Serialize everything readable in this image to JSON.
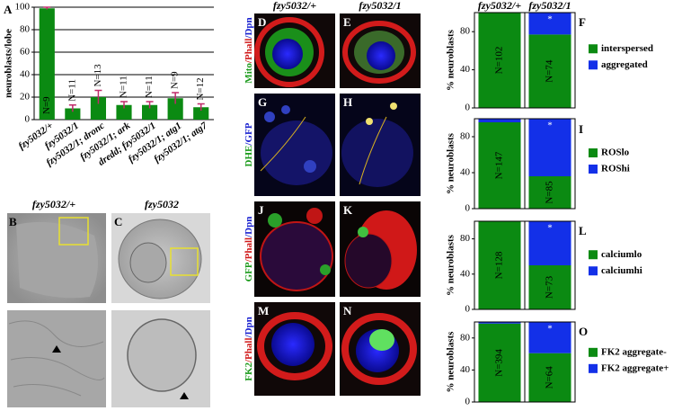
{
  "chart_data": [
    {
      "type": "bar",
      "ylabel": "neuroblasts/lobe",
      "categories": [
        "fzy5032/+",
        "fzy5032/1",
        "fzy5032/1; dronc",
        "fzy5032/1; ark",
        "dredd; fzy5032/1",
        "fzy5032/1; atg1",
        "fzy5032/1; atg7"
      ],
      "values": [
        99,
        10,
        20,
        13,
        13,
        19,
        11
      ],
      "errors": [
        1,
        3,
        6,
        3,
        3,
        5,
        3
      ],
      "n_labels": [
        "N=9",
        "N=11",
        "N=13",
        "N=11",
        "N=11",
        "N=9",
        "N=12"
      ],
      "color": "#0b8a12",
      "error_color": "#c02a6a",
      "ylim": [
        0,
        100
      ],
      "yticks": [
        0,
        20,
        40,
        60,
        80,
        100
      ],
      "grid": true
    },
    {
      "type": "stacked_bar",
      "ylabel": "% neuroblasts",
      "categories": [
        "fzy5032/+",
        "fzy5032/1"
      ],
      "series": [
        {
          "name": "interspersed",
          "color": "#0b8a12",
          "values": [
            100,
            77
          ]
        },
        {
          "name": "aggregated",
          "color": "#1330e8",
          "values": [
            0,
            23
          ]
        }
      ],
      "n_labels": [
        "N=102",
        "N=74"
      ],
      "significance_label": "*",
      "ylim": [
        0,
        100
      ],
      "yticks": [
        0,
        40,
        80
      ]
    },
    {
      "type": "stacked_bar",
      "ylabel": "% neuroblasts",
      "series": [
        {
          "name": "ROSlo",
          "color": "#0b8a12",
          "values": [
            96,
            36
          ]
        },
        {
          "name": "ROShi",
          "color": "#1330e8",
          "values": [
            4,
            64
          ]
        }
      ],
      "n_labels": [
        "N=147",
        "N=85"
      ],
      "significance_label": "*",
      "ylim": [
        0,
        100
      ],
      "yticks": [
        0,
        40,
        80
      ]
    },
    {
      "type": "stacked_bar",
      "ylabel": "% neuroblasts",
      "series": [
        {
          "name": "calciumlo",
          "color": "#0b8a12",
          "values": [
            100,
            50
          ]
        },
        {
          "name": "calciumhi",
          "color": "#1330e8",
          "values": [
            0,
            50
          ]
        }
      ],
      "n_labels": [
        "N=128",
        "N=73"
      ],
      "significance_label": "*",
      "ylim": [
        0,
        100
      ],
      "yticks": [
        0,
        40,
        80
      ]
    },
    {
      "type": "stacked_bar",
      "ylabel": "% neuroblasts",
      "series": [
        {
          "name": "FK2 aggregate-",
          "color": "#0b8a12",
          "values": [
            98,
            61
          ]
        },
        {
          "name": "FK2 aggregate+",
          "color": "#1330e8",
          "values": [
            2,
            39
          ]
        }
      ],
      "n_labels": [
        "N=394",
        "N=64"
      ],
      "significance_label": "*",
      "ylim": [
        0,
        100
      ],
      "yticks": [
        0,
        40,
        80
      ]
    }
  ],
  "panel_letters": [
    "A",
    "B",
    "C",
    "D",
    "E",
    "F",
    "G",
    "H",
    "I",
    "J",
    "K",
    "L",
    "M",
    "N",
    "O"
  ],
  "image_headers": [
    "fzy5032/+",
    "fzy5032",
    "fzy5032/+",
    "fzy5032/1"
  ],
  "row_labels": [
    [
      "Mito",
      "/Phall",
      "/Dpn"
    ],
    [
      "DHE",
      "/GFP"
    ],
    [
      "GFP",
      "/Phall",
      "/Dpn"
    ],
    [
      "FK2",
      "/Phall",
      "/Dpn"
    ]
  ]
}
